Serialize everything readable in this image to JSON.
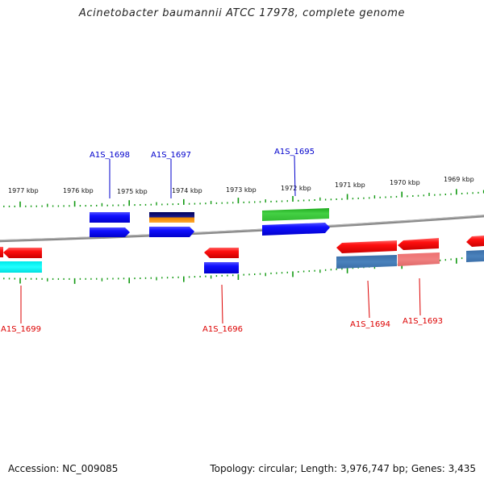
{
  "title": "Acinetobacter baumannii ATCC 17978, complete genome",
  "accession_label": "Accession: NC_009085",
  "footer_info": "Topology: circular; Length: 3,976,747 bp; Genes: 3,435",
  "colors": {
    "forward_label": "#0000cc",
    "reverse_label": "#dd0000",
    "backbone": "#808080",
    "tick": "#119911"
  },
  "kbp_labels": [
    "1977 kbp",
    "1976 kbp",
    "1975 kbp",
    "1974 kbp",
    "1973 kbp",
    "1972 kbp",
    "1971 kbp",
    "1970 kbp",
    "1969 kbp"
  ],
  "gene_labels": {
    "forward": [
      "A1S_1698",
      "A1S_1697",
      "A1S_1695"
    ],
    "reverse": [
      "A1S_1699",
      "A1S_1696",
      "A1S_1694",
      "A1S_1693"
    ]
  }
}
